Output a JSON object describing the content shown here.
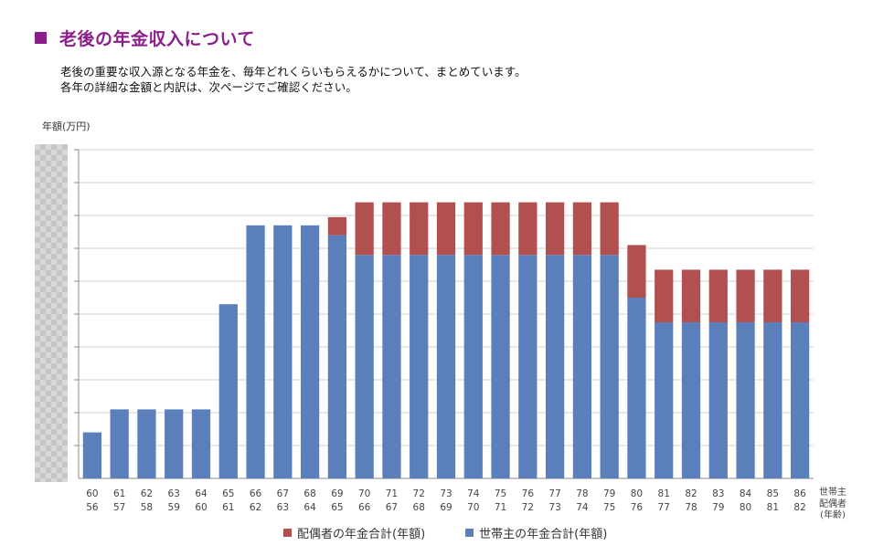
{
  "header": {
    "title": "老後の年金収入について",
    "desc_line1": "老後の重要な収入源となる年金を、毎年どれくらいもらえるかについて、まとめています。",
    "desc_line2": "各年の詳細な金額と内訳は、次ページでご確認ください。"
  },
  "chart_data": {
    "type": "bar",
    "stacked": true,
    "ylabel": "年額(万円)",
    "y_tick_labels_visible": false,
    "ylim": [
      0,
      100
    ],
    "grid": true,
    "legend_position": "bottom",
    "category_label_lines": [
      "世帯主",
      "配偶者",
      "(年齢)"
    ],
    "categories": [
      [
        "60",
        "56"
      ],
      [
        "61",
        "57"
      ],
      [
        "62",
        "58"
      ],
      [
        "63",
        "59"
      ],
      [
        "64",
        "60"
      ],
      [
        "65",
        "61"
      ],
      [
        "66",
        "62"
      ],
      [
        "67",
        "63"
      ],
      [
        "68",
        "64"
      ],
      [
        "69",
        "65"
      ],
      [
        "70",
        "66"
      ],
      [
        "71",
        "67"
      ],
      [
        "72",
        "68"
      ],
      [
        "73",
        "69"
      ],
      [
        "74",
        "70"
      ],
      [
        "75",
        "71"
      ],
      [
        "76",
        "72"
      ],
      [
        "77",
        "73"
      ],
      [
        "78",
        "74"
      ],
      [
        "79",
        "75"
      ],
      [
        "80",
        "76"
      ],
      [
        "81",
        "77"
      ],
      [
        "82",
        "78"
      ],
      [
        "83",
        "79"
      ],
      [
        "84",
        "80"
      ],
      [
        "85",
        "81"
      ],
      [
        "86",
        "82"
      ]
    ],
    "series": [
      {
        "name": "世帯主の年金合計(年額)",
        "color": "#5b7fbb",
        "values": [
          14,
          21,
          21,
          21,
          21,
          53,
          77,
          77,
          77,
          74,
          68,
          68,
          68,
          68,
          68,
          68,
          68,
          68,
          68,
          68,
          55,
          47.5,
          47.5,
          47.5,
          47.5,
          47.5,
          47.5
        ]
      },
      {
        "name": "配偶者の年金合計(年額)",
        "color": "#b24f4f",
        "values": [
          0,
          0,
          0,
          0,
          0,
          0,
          0,
          0,
          0,
          5.5,
          16,
          16,
          16,
          16,
          16,
          16,
          16,
          16,
          16,
          16,
          16,
          16,
          16,
          16,
          16,
          16,
          16
        ]
      }
    ],
    "legend_order": [
      1,
      0
    ]
  }
}
